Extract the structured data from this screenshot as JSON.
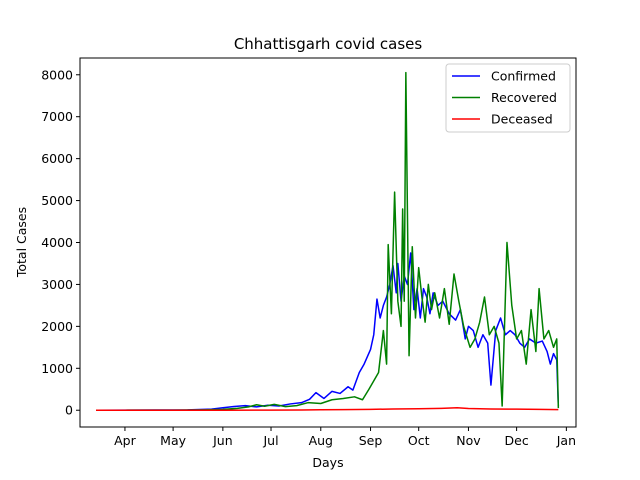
{
  "chart_data": {
    "type": "line",
    "title": "Chhattisgarh covid cases",
    "xlabel": "Days",
    "ylabel": "Total Cases",
    "x_start": "2020-03-14",
    "x_end": "2020-12-27",
    "xlim": [
      "2020-03-04",
      "2021-01-07"
    ],
    "ylim": [
      -400,
      8400
    ],
    "x_ticks": [
      {
        "date": "2020-04-01",
        "label": "Apr"
      },
      {
        "date": "2020-05-01",
        "label": "May"
      },
      {
        "date": "2020-06-01",
        "label": "Jun"
      },
      {
        "date": "2020-07-01",
        "label": "Jul"
      },
      {
        "date": "2020-08-01",
        "label": "Aug"
      },
      {
        "date": "2020-09-01",
        "label": "Sep"
      },
      {
        "date": "2020-10-01",
        "label": "Oct"
      },
      {
        "date": "2020-11-01",
        "label": "Nov"
      },
      {
        "date": "2020-12-01",
        "label": "Dec"
      },
      {
        "date": "2021-01-01",
        "label": "Jan"
      }
    ],
    "y_ticks": [
      0,
      1000,
      2000,
      3000,
      4000,
      5000,
      6000,
      7000,
      8000
    ],
    "legend_position": "top-right",
    "series": [
      {
        "name": "Confirmed",
        "color": "#0000ff",
        "points": [
          [
            "2020-03-14",
            0
          ],
          [
            "2020-04-01",
            2
          ],
          [
            "2020-04-20",
            5
          ],
          [
            "2020-05-10",
            8
          ],
          [
            "2020-05-25",
            25
          ],
          [
            "2020-06-01",
            60
          ],
          [
            "2020-06-08",
            90
          ],
          [
            "2020-06-15",
            110
          ],
          [
            "2020-06-22",
            80
          ],
          [
            "2020-06-29",
            120
          ],
          [
            "2020-07-06",
            100
          ],
          [
            "2020-07-13",
            150
          ],
          [
            "2020-07-20",
            180
          ],
          [
            "2020-07-25",
            260
          ],
          [
            "2020-07-29",
            420
          ],
          [
            "2020-08-03",
            280
          ],
          [
            "2020-08-08",
            450
          ],
          [
            "2020-08-13",
            400
          ],
          [
            "2020-08-18",
            560
          ],
          [
            "2020-08-21",
            480
          ],
          [
            "2020-08-25",
            900
          ],
          [
            "2020-08-28",
            1100
          ],
          [
            "2020-09-01",
            1450
          ],
          [
            "2020-09-03",
            1800
          ],
          [
            "2020-09-05",
            2650
          ],
          [
            "2020-09-07",
            2200
          ],
          [
            "2020-09-09",
            2500
          ],
          [
            "2020-09-11",
            2700
          ],
          [
            "2020-09-13",
            3000
          ],
          [
            "2020-09-15",
            3450
          ],
          [
            "2020-09-17",
            2800
          ],
          [
            "2020-09-18",
            3500
          ],
          [
            "2020-09-20",
            2600
          ],
          [
            "2020-09-22",
            3200
          ],
          [
            "2020-09-24",
            3000
          ],
          [
            "2020-09-26",
            3750
          ],
          [
            "2020-09-28",
            2400
          ],
          [
            "2020-09-30",
            2900
          ],
          [
            "2020-10-02",
            2200
          ],
          [
            "2020-10-04",
            2900
          ],
          [
            "2020-10-06",
            2700
          ],
          [
            "2020-10-08",
            2300
          ],
          [
            "2020-10-10",
            2800
          ],
          [
            "2020-10-13",
            2500
          ],
          [
            "2020-10-16",
            2600
          ],
          [
            "2020-10-20",
            2300
          ],
          [
            "2020-10-24",
            2150
          ],
          [
            "2020-10-27",
            2400
          ],
          [
            "2020-10-30",
            1700
          ],
          [
            "2020-11-01",
            2000
          ],
          [
            "2020-11-04",
            1900
          ],
          [
            "2020-11-07",
            1500
          ],
          [
            "2020-11-10",
            1800
          ],
          [
            "2020-11-13",
            1600
          ],
          [
            "2020-11-15",
            600
          ],
          [
            "2020-11-18",
            1900
          ],
          [
            "2020-11-21",
            2200
          ],
          [
            "2020-11-24",
            1800
          ],
          [
            "2020-11-27",
            1900
          ],
          [
            "2020-11-30",
            1800
          ],
          [
            "2020-12-03",
            1600
          ],
          [
            "2020-12-06",
            1500
          ],
          [
            "2020-12-09",
            1700
          ],
          [
            "2020-12-13",
            1600
          ],
          [
            "2020-12-17",
            1650
          ],
          [
            "2020-12-20",
            1400
          ],
          [
            "2020-12-22",
            1100
          ],
          [
            "2020-12-24",
            1350
          ],
          [
            "2020-12-26",
            1200
          ],
          [
            "2020-12-27",
            100
          ]
        ]
      },
      {
        "name": "Recovered",
        "color": "#008000",
        "points": [
          [
            "2020-03-14",
            0
          ],
          [
            "2020-04-01",
            1
          ],
          [
            "2020-05-01",
            3
          ],
          [
            "2020-05-20",
            8
          ],
          [
            "2020-06-01",
            20
          ],
          [
            "2020-06-10",
            45
          ],
          [
            "2020-06-17",
            80
          ],
          [
            "2020-06-22",
            130
          ],
          [
            "2020-06-27",
            95
          ],
          [
            "2020-07-03",
            140
          ],
          [
            "2020-07-10",
            85
          ],
          [
            "2020-07-17",
            110
          ],
          [
            "2020-07-24",
            180
          ],
          [
            "2020-08-01",
            160
          ],
          [
            "2020-08-08",
            250
          ],
          [
            "2020-08-15",
            280
          ],
          [
            "2020-08-22",
            320
          ],
          [
            "2020-08-27",
            250
          ],
          [
            "2020-08-31",
            500
          ],
          [
            "2020-09-03",
            700
          ],
          [
            "2020-09-06",
            900
          ],
          [
            "2020-09-09",
            1900
          ],
          [
            "2020-09-11",
            1100
          ],
          [
            "2020-09-12",
            3950
          ],
          [
            "2020-09-14",
            2300
          ],
          [
            "2020-09-16",
            5200
          ],
          [
            "2020-09-18",
            2600
          ],
          [
            "2020-09-20",
            2000
          ],
          [
            "2020-09-21",
            4800
          ],
          [
            "2020-09-22",
            2600
          ],
          [
            "2020-09-23",
            8050
          ],
          [
            "2020-09-25",
            1300
          ],
          [
            "2020-09-27",
            3900
          ],
          [
            "2020-09-29",
            2200
          ],
          [
            "2020-10-01",
            3400
          ],
          [
            "2020-10-03",
            2700
          ],
          [
            "2020-10-05",
            2100
          ],
          [
            "2020-10-07",
            3000
          ],
          [
            "2020-10-09",
            2400
          ],
          [
            "2020-10-11",
            2800
          ],
          [
            "2020-10-14",
            2200
          ],
          [
            "2020-10-17",
            2900
          ],
          [
            "2020-10-20",
            2050
          ],
          [
            "2020-10-23",
            3250
          ],
          [
            "2020-10-26",
            2600
          ],
          [
            "2020-10-29",
            2000
          ],
          [
            "2020-11-02",
            1500
          ],
          [
            "2020-11-05",
            1700
          ],
          [
            "2020-11-08",
            2100
          ],
          [
            "2020-11-11",
            2700
          ],
          [
            "2020-11-14",
            1800
          ],
          [
            "2020-11-17",
            2000
          ],
          [
            "2020-11-20",
            1600
          ],
          [
            "2020-11-22",
            100
          ],
          [
            "2020-11-25",
            4000
          ],
          [
            "2020-11-28",
            2500
          ],
          [
            "2020-12-01",
            1700
          ],
          [
            "2020-12-04",
            1900
          ],
          [
            "2020-12-07",
            1100
          ],
          [
            "2020-12-10",
            2400
          ],
          [
            "2020-12-13",
            1400
          ],
          [
            "2020-12-15",
            2900
          ],
          [
            "2020-12-18",
            1700
          ],
          [
            "2020-12-21",
            1900
          ],
          [
            "2020-12-24",
            1500
          ],
          [
            "2020-12-26",
            1700
          ],
          [
            "2020-12-27",
            50
          ]
        ]
      },
      {
        "name": "Deceased",
        "color": "#ff0000",
        "points": [
          [
            "2020-03-14",
            0
          ],
          [
            "2020-05-01",
            0
          ],
          [
            "2020-06-01",
            1
          ],
          [
            "2020-07-01",
            3
          ],
          [
            "2020-07-20",
            6
          ],
          [
            "2020-08-01",
            10
          ],
          [
            "2020-08-15",
            15
          ],
          [
            "2020-09-01",
            20
          ],
          [
            "2020-09-15",
            30
          ],
          [
            "2020-10-01",
            35
          ],
          [
            "2020-10-15",
            45
          ],
          [
            "2020-10-25",
            60
          ],
          [
            "2020-11-01",
            40
          ],
          [
            "2020-11-15",
            30
          ],
          [
            "2020-12-01",
            25
          ],
          [
            "2020-12-15",
            20
          ],
          [
            "2020-12-27",
            15
          ]
        ]
      }
    ]
  }
}
